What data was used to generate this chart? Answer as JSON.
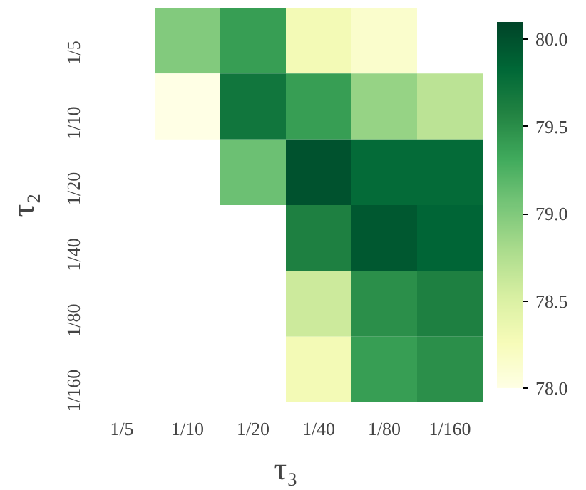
{
  "chart_data": {
    "type": "heatmap",
    "xlabel": "τ₃",
    "ylabel": "τ₂",
    "categories": [
      "1/5",
      "1/10",
      "1/20",
      "1/40",
      "1/80",
      "1/160"
    ],
    "y_categories": [
      "1/5",
      "1/10",
      "1/20",
      "1/40",
      "1/80",
      "1/160"
    ],
    "cells": [
      [
        null,
        79.0,
        79.4,
        78.3,
        78.15,
        null
      ],
      [
        null,
        78.0,
        79.7,
        79.4,
        78.9,
        78.7
      ],
      [
        null,
        null,
        79.1,
        80.0,
        79.8,
        79.8
      ],
      [
        null,
        null,
        null,
        79.6,
        79.95,
        79.85
      ],
      [
        null,
        null,
        null,
        78.6,
        79.5,
        79.6
      ],
      [
        null,
        null,
        null,
        78.3,
        79.4,
        79.5
      ]
    ],
    "clim": [
      78.0,
      80.1
    ],
    "cticks": [
      {
        "value": 78,
        "label": "78.0"
      },
      78.5,
      {
        "value": 79,
        "label": "79.0"
      },
      79.5,
      {
        "value": 80,
        "label": "80.0"
      }
    ]
  }
}
